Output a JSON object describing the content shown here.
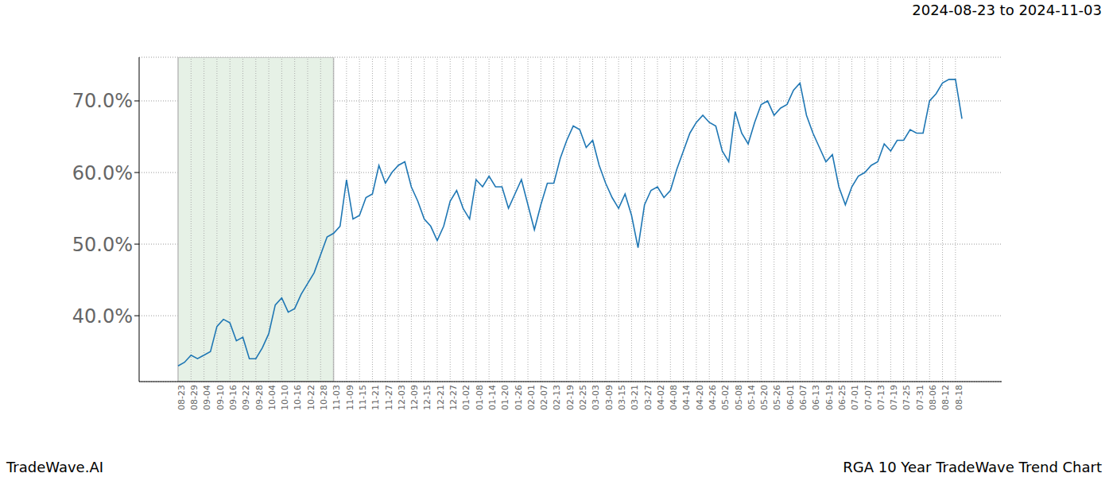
{
  "chart_data": {
    "type": "line",
    "title": "RGA 10 Year TradeWave Trend Chart",
    "subtitle": "2024-08-23 to 2024-11-03",
    "annotations": [
      "TradeWave.AI"
    ],
    "highlight": {
      "start": "08-23",
      "end": "11-03"
    },
    "categories": [
      "08-23",
      null,
      "08-29",
      null,
      "09-04",
      null,
      "09-10",
      null,
      "09-16",
      null,
      "09-22",
      null,
      "09-28",
      null,
      "10-04",
      null,
      "10-10",
      null,
      "10-16",
      null,
      "10-22",
      null,
      "10-28",
      null,
      "11-03",
      null,
      "11-09",
      null,
      "11-15",
      null,
      "11-21",
      null,
      "11-27",
      null,
      "12-03",
      null,
      "12-09",
      null,
      "12-15",
      null,
      "12-21",
      null,
      "12-27",
      null,
      "01-02",
      null,
      "01-08",
      null,
      "01-14",
      null,
      "01-20",
      null,
      "01-26",
      null,
      "02-01",
      null,
      "02-07",
      null,
      "02-13",
      null,
      "02-19",
      null,
      "02-25",
      null,
      "03-03",
      null,
      "03-09",
      null,
      "03-15",
      null,
      "03-21",
      null,
      "03-27",
      null,
      "04-02",
      null,
      "04-08",
      null,
      "04-14",
      null,
      "04-20",
      null,
      "04-26",
      null,
      "05-02",
      null,
      "05-08",
      null,
      "05-14",
      null,
      "05-20",
      null,
      "05-26",
      null,
      "06-01",
      null,
      "06-07",
      null,
      "06-13",
      null,
      "06-19",
      null,
      "06-25",
      null,
      "07-01",
      null,
      "07-07",
      null,
      "07-13",
      null,
      "07-19",
      null,
      "07-25",
      null,
      "07-31",
      null,
      "08-06",
      null,
      "08-12",
      null,
      "08-18",
      null
    ],
    "values": [
      33,
      33.5,
      34.5,
      34,
      34.5,
      35,
      38.5,
      39.5,
      39,
      36.5,
      37,
      34,
      34,
      35.5,
      37.5,
      41.5,
      42.5,
      40.5,
      41,
      43,
      44.5,
      46,
      48.5,
      51,
      51.5,
      52.5,
      59,
      53.5,
      54,
      56.5,
      57,
      61,
      58.5,
      60,
      61,
      61.5,
      58,
      56,
      53.5,
      52.5,
      50.5,
      52.5,
      56,
      57.5,
      55,
      53.5,
      59,
      58,
      59.5,
      58,
      58,
      55,
      57,
      59,
      55.5,
      52,
      55.5,
      58.5,
      58.5,
      62,
      64.5,
      66.5,
      66,
      63.5,
      64.5,
      61,
      58.5,
      56.5,
      55,
      57,
      54,
      49.5,
      55.5,
      57.5,
      58,
      56.5,
      57.5,
      60.5,
      63,
      65.5,
      67,
      68,
      67,
      66.5,
      63,
      61.5,
      68.5,
      65.5,
      64,
      67,
      69.5,
      70,
      68,
      69,
      69.5,
      71.5,
      72.5,
      68,
      65.5,
      63.5,
      61.5,
      62.5,
      58,
      55.5,
      58,
      59.5,
      60,
      61,
      61.5,
      64,
      63,
      64.5,
      64.5,
      66,
      65.5,
      65.5,
      70,
      71,
      72.5,
      73,
      73,
      67.5
    ],
    "color": "#1f77b4",
    "ylim": [
      30.8,
      76.1
    ],
    "yticks": [
      {
        "value": 40,
        "label": "40.0%"
      },
      {
        "value": 50,
        "label": "50.0%"
      },
      {
        "value": 60,
        "label": "60.0%"
      },
      {
        "value": 70,
        "label": "70.0%"
      }
    ],
    "grid": true
  }
}
